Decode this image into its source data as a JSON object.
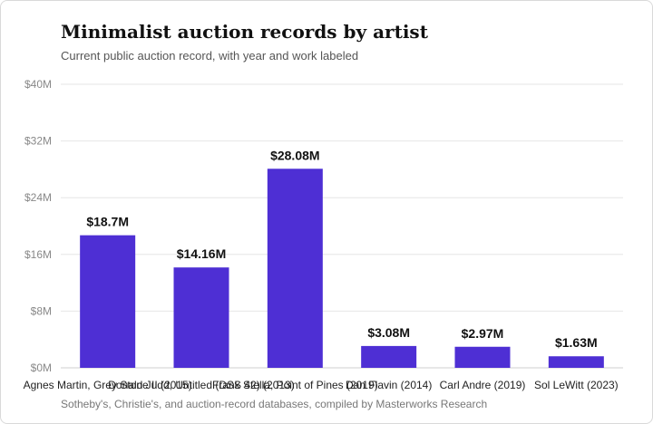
{
  "title": "Minimalist auction records by artist",
  "subtitle": "Current public auction record, with year and work labeled",
  "source": "Sotheby's, Christie's, and auction-record databases, compiled by Masterworks Research",
  "colors": {
    "bar": "#4e2fd4",
    "grid": "#e6e6e6",
    "text": "#111111"
  },
  "chart_data": {
    "type": "bar",
    "categories": [
      "Agnes Martin, Grey Stone II (2015)",
      "Donald Judd, Untitled (DSS 42) (2013)",
      "Frank Stella, Point of Pines (2019)",
      "Dan Flavin (2014)",
      "Carl Andre (2019)",
      "Sol LeWitt (2023)"
    ],
    "values": [
      18.7,
      14.16,
      28.08,
      3.08,
      2.97,
      1.63
    ],
    "data_labels": [
      "$18.7M",
      "$14.16M",
      "$28.08M",
      "$3.08M",
      "$2.97M",
      "$1.63M"
    ],
    "yticks": [
      0,
      8,
      16,
      24,
      32,
      40
    ],
    "ytick_labels": [
      "$0M",
      "$8M",
      "$16M",
      "$24M",
      "$32M",
      "$40M"
    ],
    "ylim": [
      0,
      40
    ],
    "xlabel": "",
    "ylabel": "",
    "grid": true,
    "legend": "none"
  }
}
